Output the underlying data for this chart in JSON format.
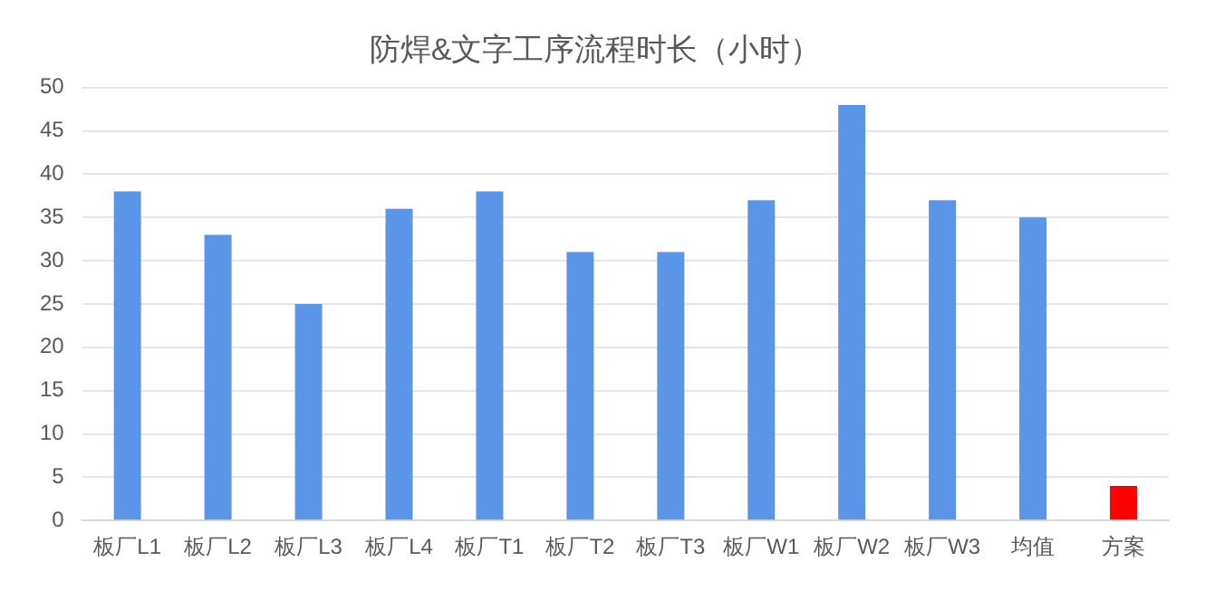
{
  "chart_data": {
    "type": "bar",
    "title": "防焊&文字工序流程时长（小时）",
    "categories": [
      "板厂L1",
      "板厂L2",
      "板厂L3",
      "板厂L4",
      "板厂T1",
      "板厂T2",
      "板厂T3",
      "板厂W1",
      "板厂W2",
      "板厂W3",
      "均值",
      "方案"
    ],
    "values": [
      38,
      33,
      25,
      36,
      38,
      31,
      31,
      37,
      48,
      37,
      35,
      4
    ],
    "colors": [
      "#5b95e8",
      "#5b95e8",
      "#5b95e8",
      "#5b95e8",
      "#5b95e8",
      "#5b95e8",
      "#5b95e8",
      "#5b95e8",
      "#5b95e8",
      "#5b95e8",
      "#5b95e8",
      "#ff0000"
    ],
    "ylim": [
      0,
      50
    ],
    "yticks": [
      0,
      5,
      10,
      15,
      20,
      25,
      30,
      35,
      40,
      45,
      50
    ],
    "grid": "y",
    "legend": false
  }
}
